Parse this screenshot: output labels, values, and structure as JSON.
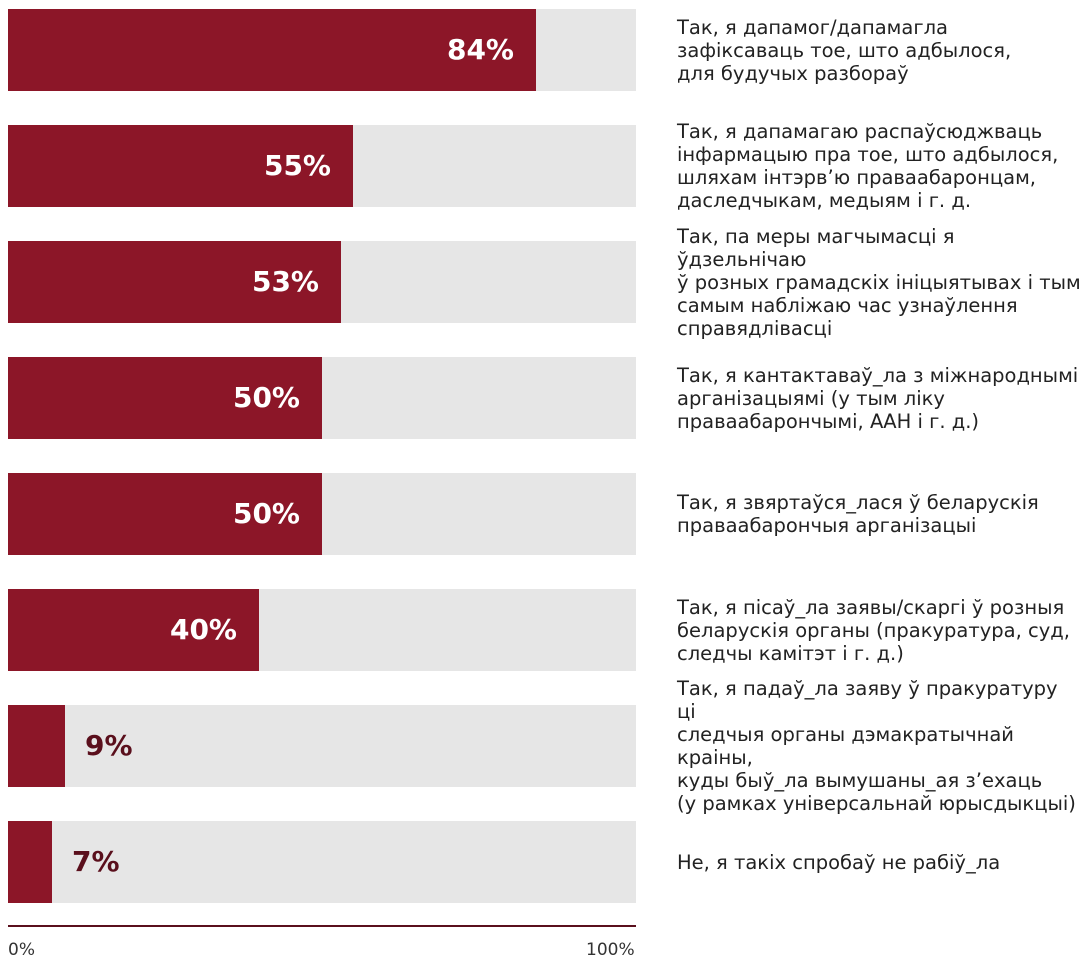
{
  "chart_data": {
    "type": "bar",
    "orientation": "horizontal",
    "categories": [
      "Так, я дапамог/дапамагла\nзафіксаваць тое, што адбылося,\nдля будучых разбораў",
      "Так, я дапамагаю распаўсюджваць\nінфармацыю пра тое, што адбылося,\nшляхам інтэрв’ю праваабаронцам,\nдаследчыкам, медыям і г. д.",
      "Так, па меры магчымасці я ўдзельнічаю\nў розных грамадскіх ініцыятывах і тым\nсамым набліжаю час узнаўлення\nсправядлівасці",
      "Так, я кантактаваў_ла з міжнароднымі\nарганізацыямі (у тым ліку\nправаабарончымі, ААН і г. д.)",
      "Так, я звяртаўся_лася ў беларускія\nправаабарончыя арганізацыі",
      "Так, я пісаў_ла заявы/скаргі ў розныя\nбеларускія органы (пракуратура, суд,\nследчы камітэт і г. д.)",
      "Так, я падаў_ла заяву ў пракуратуру ці\nследчыя органы дэмакратычнай краіны,\nкуды быў_ла вымушаны_ая з’ехаць\n(у рамках універсальнай юрысдыкцыі)",
      "Не, я такіх спробаў не рабіў_ла"
    ],
    "values": [
      84,
      55,
      53,
      50,
      50,
      40,
      9,
      7
    ],
    "value_labels": [
      "84%",
      "55%",
      "53%",
      "50%",
      "50%",
      "40%",
      "9%",
      "7%"
    ],
    "xlim": [
      0,
      100
    ],
    "x_tick_labels": [
      "0%",
      "100%"
    ],
    "grid": false,
    "legend": "none",
    "colors": {
      "bar": "#8c1628",
      "track": "#e6e6e6",
      "axis": "#5a0f1c",
      "label_outside": "#5a0f1c"
    }
  }
}
